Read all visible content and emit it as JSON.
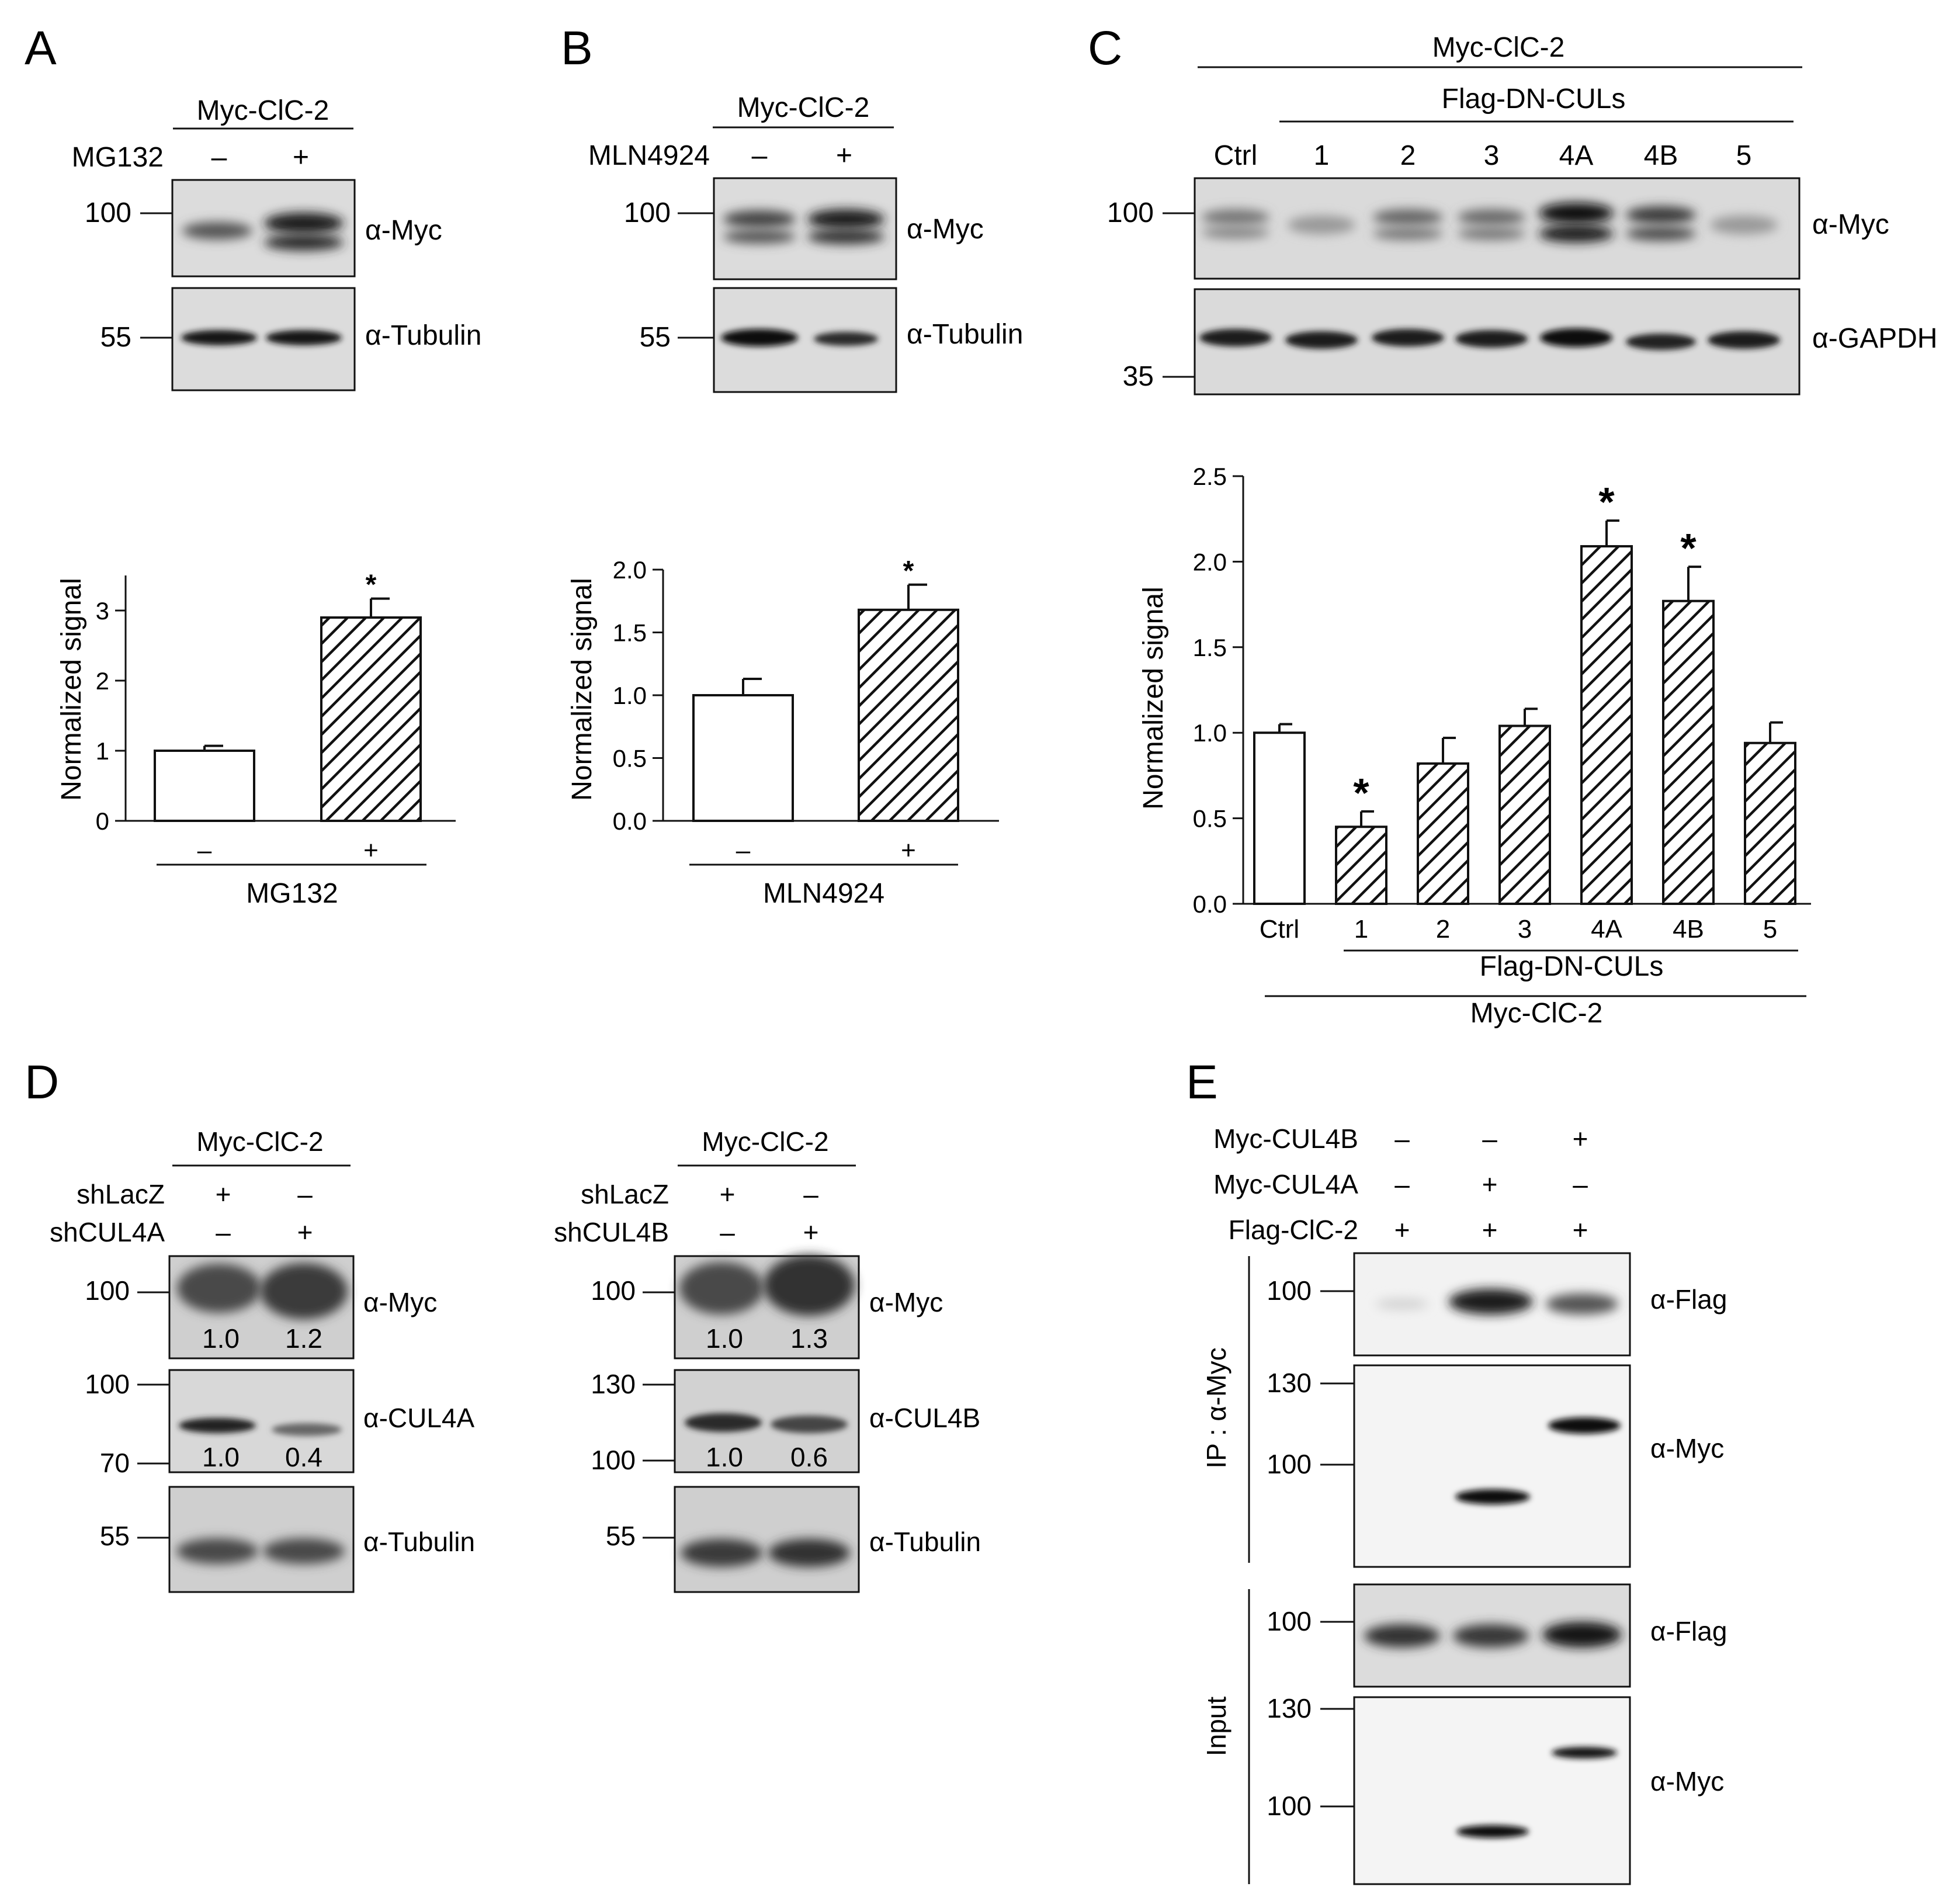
{
  "panels": {
    "A": {
      "letter": "A",
      "blot": {
        "construct": "Myc-ClC-2",
        "treatment": "MG132",
        "lanes": [
          "–",
          "+"
        ],
        "markers": [
          "100",
          "55"
        ],
        "antibodies": [
          "α-Myc",
          "α-Tubulin"
        ]
      },
      "chart": {
        "ylabel": "Normalized signal",
        "yticks": [
          "0",
          "1",
          "2",
          "3"
        ],
        "xtick_labels": [
          "–",
          "+"
        ],
        "group_label": "MG132",
        "sig": "*"
      }
    },
    "B": {
      "letter": "B",
      "blot": {
        "construct": "Myc-ClC-2",
        "treatment": "MLN4924",
        "lanes": [
          "–",
          "+"
        ],
        "markers": [
          "100",
          "55"
        ],
        "antibodies": [
          "α-Myc",
          "α-Tubulin"
        ]
      },
      "chart": {
        "ylabel": "Normalized signal",
        "yticks": [
          "0.0",
          "0.5",
          "1.0",
          "1.5",
          "2.0"
        ],
        "xtick_labels": [
          "–",
          "+"
        ],
        "group_label": "MLN4924",
        "sig": "*"
      }
    },
    "C": {
      "letter": "C",
      "blot": {
        "construct": "Myc-ClC-2",
        "group": "Flag-DN-CULs",
        "lanes": [
          "Ctrl",
          "1",
          "2",
          "3",
          "4A",
          "4B",
          "5"
        ],
        "markers": [
          "100",
          "35"
        ],
        "antibodies": [
          "α-Myc",
          "α-GAPDH"
        ]
      },
      "chart": {
        "ylabel": "Normalized signal",
        "yticks": [
          "0.0",
          "0.5",
          "1.0",
          "1.5",
          "2.0",
          "2.5"
        ],
        "xtick_labels": [
          "Ctrl",
          "1",
          "2",
          "3",
          "4A",
          "4B",
          "5"
        ],
        "group_label": "Flag-DN-CULs",
        "construct_label": "Myc-ClC-2",
        "sig": "*"
      }
    },
    "D": {
      "letter": "D",
      "left": {
        "construct": "Myc-ClC-2",
        "rows": [
          {
            "label": "shLacZ",
            "marks": [
              "+",
              "–"
            ]
          },
          {
            "label": "shCUL4A",
            "marks": [
              "–",
              "+"
            ]
          }
        ],
        "antibodies": [
          "α-Myc",
          "α-CUL4A",
          "α-Tubulin"
        ],
        "markers": [
          "100",
          "100",
          "70",
          "55"
        ],
        "quant_myc": [
          "1.0",
          "1.2"
        ],
        "quant_cul": [
          "1.0",
          "0.4"
        ]
      },
      "right": {
        "construct": "Myc-ClC-2",
        "rows": [
          {
            "label": "shLacZ",
            "marks": [
              "+",
              "–"
            ]
          },
          {
            "label": "shCUL4B",
            "marks": [
              "–",
              "+"
            ]
          }
        ],
        "antibodies": [
          "α-Myc",
          "α-CUL4B",
          "α-Tubulin"
        ],
        "markers": [
          "100",
          "130",
          "100",
          "55"
        ],
        "quant_myc": [
          "1.0",
          "1.3"
        ],
        "quant_cul": [
          "1.0",
          "0.6"
        ]
      }
    },
    "E": {
      "letter": "E",
      "rows": [
        {
          "label": "Myc-CUL4B",
          "marks": [
            "–",
            "–",
            "+"
          ]
        },
        {
          "label": "Myc-CUL4A",
          "marks": [
            "–",
            "+",
            "–"
          ]
        },
        {
          "label": "Flag-ClC-2",
          "marks": [
            "+",
            "+",
            "+"
          ]
        }
      ],
      "ip_label": "IP : α-Myc",
      "input_label": "Input",
      "antibodies": [
        "α-Flag",
        "α-Myc",
        "α-Flag",
        "α-Myc"
      ],
      "markers": [
        "100",
        "130",
        "100",
        "100",
        "130",
        "100"
      ]
    }
  },
  "chart_data": [
    {
      "panel": "A",
      "type": "bar",
      "categories": [
        "–",
        "+"
      ],
      "values": [
        1.0,
        2.9
      ],
      "errors": [
        0.07,
        0.27
      ],
      "ylabel": "Normalized signal",
      "xlabel": "MG132",
      "ylim": [
        0,
        3.5
      ],
      "significant": [
        false,
        true
      ],
      "grid": false
    },
    {
      "panel": "B",
      "type": "bar",
      "categories": [
        "–",
        "+"
      ],
      "values": [
        1.0,
        1.68
      ],
      "errors": [
        0.13,
        0.2
      ],
      "ylabel": "Normalized signal",
      "xlabel": "MLN4924",
      "ylim": [
        0,
        2.0
      ],
      "significant": [
        false,
        true
      ],
      "grid": false
    },
    {
      "panel": "C",
      "type": "bar",
      "categories": [
        "Ctrl",
        "1",
        "2",
        "3",
        "4A",
        "4B",
        "5"
      ],
      "values": [
        1.0,
        0.45,
        0.82,
        1.04,
        2.09,
        1.77,
        0.94
      ],
      "errors": [
        0.05,
        0.09,
        0.15,
        0.1,
        0.15,
        0.2,
        0.12
      ],
      "ylabel": "Normalized signal",
      "xlabel": "Flag-DN-CULs",
      "ylim": [
        0,
        2.5
      ],
      "significant": [
        false,
        true,
        false,
        false,
        true,
        true,
        false
      ],
      "grid": false
    }
  ]
}
